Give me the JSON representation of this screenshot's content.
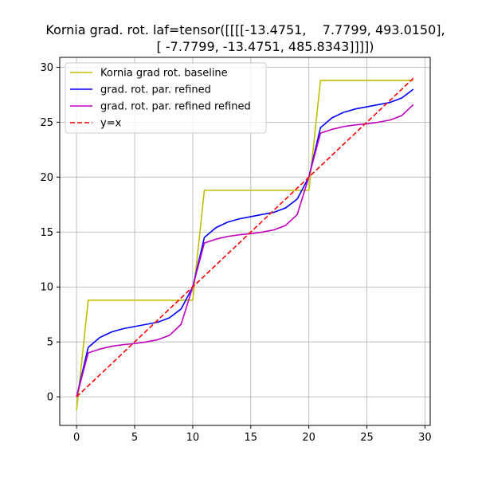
{
  "chart_data": {
    "type": "line",
    "title_lines": [
      "Kornia grad. rot. laf=tensor([[[[-13.4751,    7.7799, 493.0150],",
      "[ -7.7799, -13.4751, 485.8343]]]])"
    ],
    "xlabel": "",
    "ylabel": "",
    "xlim": [
      -1.45,
      30.45
    ],
    "ylim": [
      -2.6,
      30.9
    ],
    "xticks": [
      0,
      5,
      10,
      15,
      20,
      25,
      30
    ],
    "yticks": [
      0,
      5,
      10,
      15,
      20,
      25,
      30
    ],
    "grid": true,
    "legend_position": "upper-left",
    "x": [
      0,
      1,
      2,
      3,
      4,
      5,
      6,
      7,
      8,
      9,
      10,
      11,
      12,
      13,
      14,
      15,
      16,
      17,
      18,
      19,
      20,
      21,
      22,
      23,
      24,
      25,
      26,
      27,
      28,
      29
    ],
    "series": [
      {
        "name": "Kornia grad rot. baseline",
        "color": "#bfbf00",
        "dash": "solid",
        "values": [
          -1.2,
          8.8,
          8.8,
          8.8,
          8.8,
          8.8,
          8.8,
          8.8,
          8.8,
          8.8,
          8.8,
          18.8,
          18.8,
          18.8,
          18.8,
          18.8,
          18.8,
          18.8,
          18.8,
          18.8,
          18.8,
          28.8,
          28.8,
          28.8,
          28.8,
          28.8,
          28.8,
          28.8,
          28.8,
          28.8
        ]
      },
      {
        "name": "grad. rot. par. refined",
        "color": "#0000ff",
        "dash": "solid",
        "values": [
          0,
          4.5,
          5.4,
          5.9,
          6.2,
          6.4,
          6.6,
          6.8,
          7.2,
          8.0,
          10.0,
          14.5,
          15.4,
          15.9,
          16.2,
          16.4,
          16.6,
          16.8,
          17.2,
          18.0,
          20.0,
          24.5,
          25.4,
          25.9,
          26.2,
          26.4,
          26.6,
          26.8,
          27.2,
          28.0
        ]
      },
      {
        "name": "grad. rot. par. refined refined",
        "color": "#bf00bf",
        "dash": "solid",
        "values": [
          0,
          4.0,
          4.35,
          4.6,
          4.75,
          4.85,
          5.0,
          5.2,
          5.6,
          6.6,
          10.0,
          14.0,
          14.35,
          14.6,
          14.75,
          14.85,
          15.0,
          15.2,
          15.6,
          16.6,
          20.0,
          24.0,
          24.35,
          24.6,
          24.75,
          24.85,
          25.0,
          25.2,
          25.6,
          26.6
        ]
      },
      {
        "name": "y=x",
        "color": "#ff0000",
        "dash": "dashed",
        "values": [
          0,
          1,
          2,
          3,
          4,
          5,
          6,
          7,
          8,
          9,
          10,
          11,
          12,
          13,
          14,
          15,
          16,
          17,
          18,
          19,
          20,
          21,
          22,
          23,
          24,
          25,
          26,
          27,
          28,
          29
        ]
      }
    ]
  }
}
